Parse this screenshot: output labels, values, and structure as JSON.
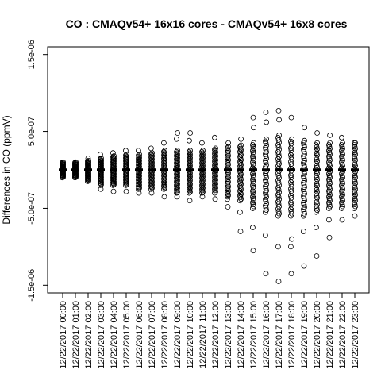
{
  "chart_data": {
    "type": "scatter",
    "title": "CO : CMAQv54+ 16x16 cores - CMAQv54+ 16x8 cores",
    "xlabel": "",
    "ylabel": "Differences in CO (ppmV)",
    "ylim": [
      -1.6e-06,
      1.6e-06
    ],
    "y_ticks": [
      -1.5e-06,
      -5e-07,
      5e-07,
      1.5e-06
    ],
    "y_tick_labels": [
      "-1.5e-06",
      "-5.0e-07",
      "5.0e-07",
      "1.5e-06"
    ],
    "grid": false,
    "legend": "none",
    "marker": "open-circle",
    "median_marker": "thick-dash",
    "categories": [
      "12/22/2017 00:00",
      "12/22/2017 01:00",
      "12/22/2017 02:00",
      "12/22/2017 03:00",
      "12/22/2017 04:00",
      "12/22/2017 05:00",
      "12/22/2017 06:00",
      "12/22/2017 07:00",
      "12/22/2017 08:00",
      "12/22/2017 09:00",
      "12/22/2017 10:00",
      "12/22/2017 11:00",
      "12/22/2017 12:00",
      "12/22/2017 13:00",
      "12/22/2017 14:00",
      "12/22/2017 15:00",
      "12/22/2017 16:00",
      "12/22/2017 17:00",
      "12/22/2017 18:00",
      "12/22/2017 19:00",
      "12/22/2017 20:00",
      "12/22/2017 21:00",
      "12/22/2017 22:00",
      "12/22/2017 23:00"
    ],
    "series": [
      {
        "median": [
          0,
          0,
          0,
          0,
          0,
          0,
          0,
          0,
          0,
          0,
          0,
          0,
          0,
          0,
          0,
          0,
          0,
          0,
          0,
          0,
          0,
          0,
          0,
          0
        ],
        "band_min": [
          -1e-07,
          -1e-07,
          -1.5e-07,
          -2e-07,
          -2e-07,
          -2e-07,
          -2.5e-07,
          -2.5e-07,
          -2.5e-07,
          -3e-07,
          -3e-07,
          -3e-07,
          -3e-07,
          -3.5e-07,
          -4e-07,
          -5e-07,
          -5.5e-07,
          -6e-07,
          -6e-07,
          -6e-07,
          -5.5e-07,
          -5e-07,
          -5e-07,
          -5e-07
        ],
        "band_max": [
          1e-07,
          1e-07,
          1.2e-07,
          1.5e-07,
          1.8e-07,
          2e-07,
          2e-07,
          2.2e-07,
          2.5e-07,
          2.5e-07,
          2.5e-07,
          2.5e-07,
          2.8e-07,
          3e-07,
          3.2e-07,
          3.5e-07,
          4e-07,
          4.5e-07,
          4e-07,
          3.8e-07,
          3.5e-07,
          3.5e-07,
          3.5e-07,
          3.5e-07
        ],
        "outliers": [
          [],
          [],
          [
            1.5e-07
          ],
          [
            -2.5e-07,
            2e-07
          ],
          [
            -2.8e-07,
            2.2e-07
          ],
          [
            -2.8e-07,
            2.5e-07
          ],
          [
            -3e-07,
            2.5e-07
          ],
          [
            -3e-07,
            2.8e-07
          ],
          [
            -3.5e-07,
            3.5e-07
          ],
          [
            -3.5e-07,
            4e-07,
            4.8e-07
          ],
          [
            -4e-07,
            3.8e-07,
            4.8e-07
          ],
          [
            -3.5e-07,
            3.5e-07
          ],
          [
            -3.8e-07,
            4.2e-07
          ],
          [
            -4.8e-07,
            -3.8e-07,
            3.5e-07
          ],
          [
            -8e-07,
            -5.5e-07,
            4e-07
          ],
          [
            -1.05e-06,
            -7.5e-07,
            5.5e-07,
            6.8e-07
          ],
          [
            -1.35e-06,
            -8.5e-07,
            6.2e-07,
            7.5e-07
          ],
          [
            -1.45e-06,
            -1e-06,
            6.5e-07,
            7.7e-07
          ],
          [
            -1.35e-06,
            -1e-06,
            -9e-07,
            6.8e-07
          ],
          [
            -1.25e-06,
            -8e-07,
            5.5e-07
          ],
          [
            -1.12e-06,
            -7.5e-07,
            4.8e-07
          ],
          [
            -8.8e-07,
            -6.5e-07,
            4.5e-07
          ],
          [
            -6.5e-07,
            4.2e-07
          ],
          [
            -6e-07,
            3.5e-07
          ]
        ]
      }
    ]
  }
}
